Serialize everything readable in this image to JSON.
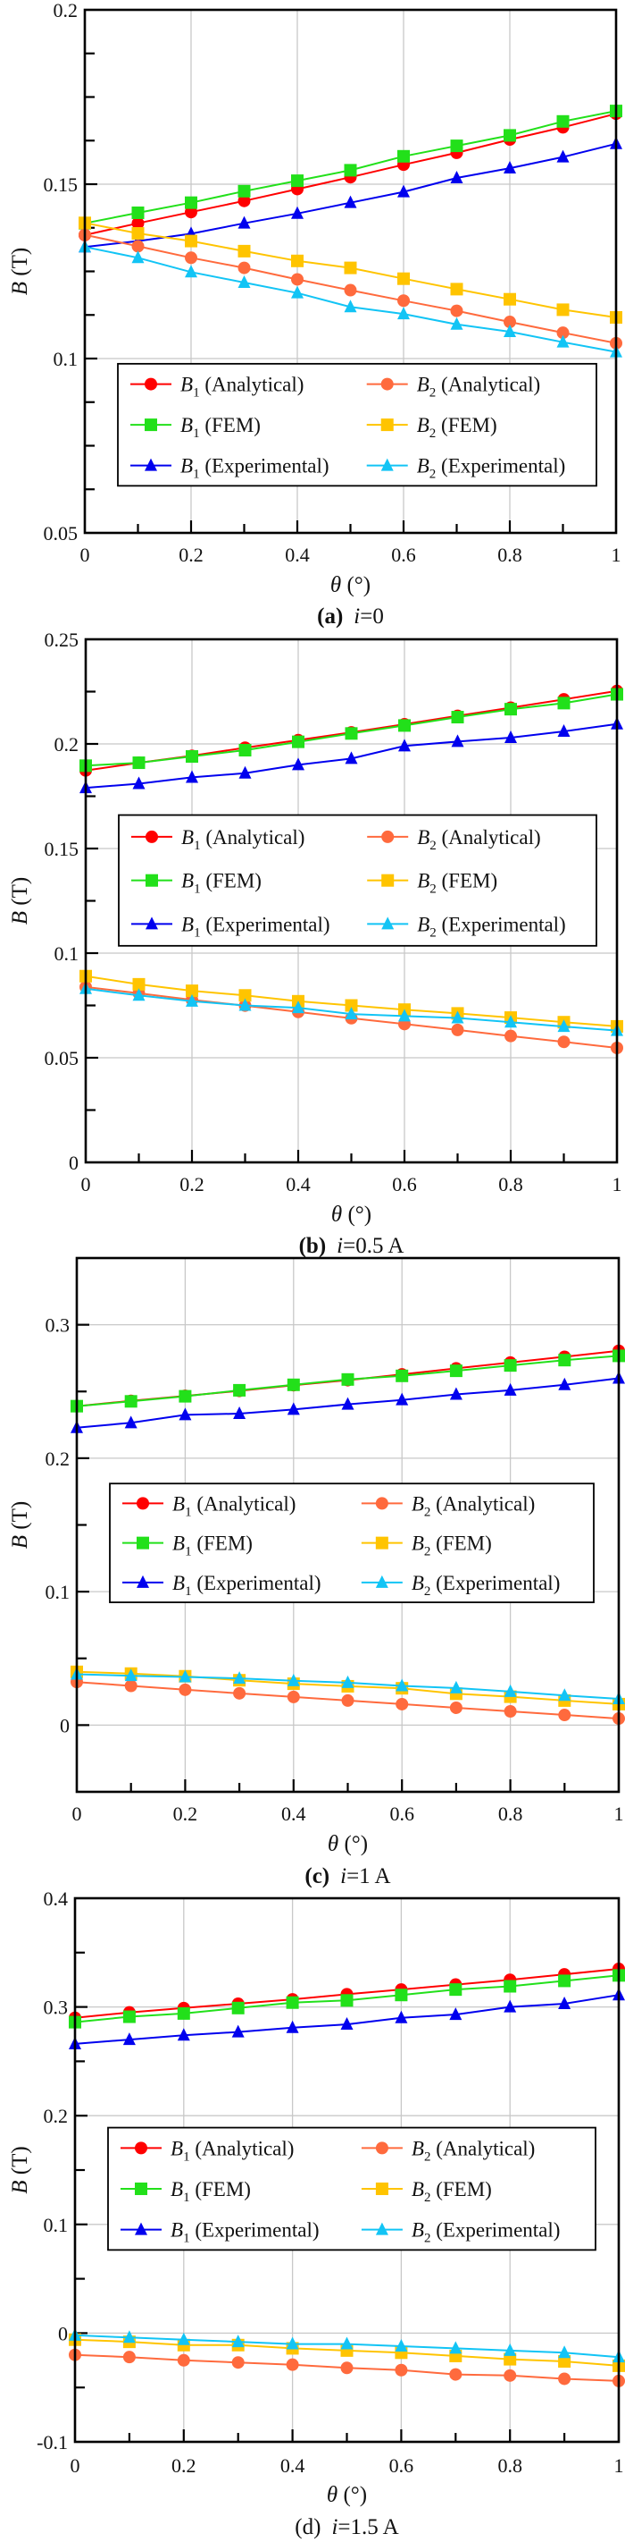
{
  "figure": {
    "legend_labels": {
      "b1_analytical": {
        "sym": "B",
        "sub": "1",
        "text": " (Analytical)"
      },
      "b2_analytical": {
        "sym": "B",
        "sub": "2",
        "text": " (Analytical)"
      },
      "b1_fem": {
        "sym": "B",
        "sub": "1",
        "text": " (FEM)"
      },
      "b2_fem": {
        "sym": "B",
        "sub": "2",
        "text": " (FEM)"
      },
      "b1_exp": {
        "sym": "B",
        "sub": "1",
        "text": " (Experimental)"
      },
      "b2_exp": {
        "sym": "B",
        "sub": "2",
        "text": " (Experimental)"
      }
    },
    "series_colors": {
      "b1_analytical": "#ff0000",
      "b2_analytical": "#ff6a3d",
      "b1_fem": "#22e01a",
      "b2_fem": "#ffc400",
      "b1_exp": "#0000ee",
      "b2_exp": "#12c4f5"
    },
    "series_markers": {
      "b1_analytical": "circle",
      "b2_analytical": "circle",
      "b1_fem": "square",
      "b2_fem": "square",
      "b1_exp": "triangle",
      "b2_exp": "triangle"
    }
  },
  "chart_data": [
    {
      "type": "line",
      "panel": "a",
      "caption": {
        "prefix": "(a)",
        "var": "i",
        "value": "=0",
        "bold": true
      },
      "xlabel": {
        "sym": "θ",
        "unit": " (°)"
      },
      "ylabel": {
        "sym": "B",
        "unit": " (T)"
      },
      "xlim": [
        0,
        1
      ],
      "ylim": [
        0.05,
        0.2
      ],
      "xticks": [
        "0",
        "0.2",
        "0.4",
        "0.6",
        "0.8",
        "1"
      ],
      "xtick_values": [
        0,
        0.2,
        0.4,
        0.6,
        0.8,
        1
      ],
      "yticks": [
        "0.05",
        "0.1",
        "0.15",
        "0.2"
      ],
      "ytick_values": [
        0.05,
        0.1,
        0.15,
        0.2
      ],
      "y_minor_step": 0.0125,
      "grid": true,
      "legend": "center-bottom",
      "x": [
        0,
        0.1,
        0.2,
        0.3,
        0.4,
        0.5,
        0.6,
        0.7,
        0.8,
        0.9,
        1
      ],
      "series": [
        {
          "key": "b1_analytical",
          "name": "B1 (Analytical)",
          "values": [
            0.1354,
            0.1388,
            0.142,
            0.1452,
            0.1486,
            0.152,
            0.1556,
            0.159,
            0.1628,
            0.1663,
            0.1702
          ]
        },
        {
          "key": "b1_fem",
          "name": "B1 (FEM)",
          "values": [
            0.1388,
            0.1418,
            0.1447,
            0.148,
            0.151,
            0.154,
            0.158,
            0.161,
            0.164,
            0.168,
            0.171
          ]
        },
        {
          "key": "b1_exp",
          "name": "B1 (Experimental)",
          "values": [
            0.132,
            0.1337,
            0.1358,
            0.1388,
            0.1416,
            0.1447,
            0.1478,
            0.1518,
            0.1546,
            0.1578,
            0.1616
          ]
        },
        {
          "key": "b2_analytical",
          "name": "B2 (Analytical)",
          "values": [
            0.1355,
            0.1322,
            0.1289,
            0.126,
            0.1227,
            0.1196,
            0.1166,
            0.1137,
            0.1105,
            0.1074,
            0.1044
          ]
        },
        {
          "key": "b2_fem",
          "name": "B2 (FEM)",
          "values": [
            0.1389,
            0.1359,
            0.1337,
            0.1308,
            0.128,
            0.126,
            0.1229,
            0.1199,
            0.117,
            0.114,
            0.1118
          ]
        },
        {
          "key": "b2_exp",
          "name": "B2 (Experimental)",
          "values": [
            0.132,
            0.1289,
            0.1248,
            0.1218,
            0.1188,
            0.1148,
            0.1128,
            0.1098,
            0.1077,
            0.1047,
            0.1019
          ]
        }
      ]
    },
    {
      "type": "line",
      "panel": "b",
      "caption": {
        "prefix": "(b)",
        "var": "i",
        "value": "=0.5 A",
        "bold": true
      },
      "xlabel": {
        "sym": "θ",
        "unit": " (°)"
      },
      "ylabel": {
        "sym": "B",
        "unit": " (T)"
      },
      "xlim": [
        0,
        1
      ],
      "ylim": [
        0,
        0.25
      ],
      "xticks": [
        "0",
        "0.2",
        "0.4",
        "0.6",
        "0.8",
        "1"
      ],
      "xtick_values": [
        0,
        0.2,
        0.4,
        0.6,
        0.8,
        1
      ],
      "yticks": [
        "0",
        "0.05",
        "0.1",
        "0.15",
        "0.2",
        "0.25"
      ],
      "ytick_values": [
        0,
        0.05,
        0.1,
        0.15,
        0.2,
        0.25
      ],
      "y_minor_step": 0.025,
      "grid": true,
      "legend": "center",
      "x": [
        0,
        0.1,
        0.2,
        0.3,
        0.4,
        0.5,
        0.6,
        0.7,
        0.8,
        0.9,
        1
      ],
      "series": [
        {
          "key": "b1_analytical",
          "name": "B1 (Analytical)",
          "values": [
            0.1873,
            0.191,
            0.1943,
            0.1982,
            0.2018,
            0.2055,
            0.2094,
            0.2134,
            0.2173,
            0.2213,
            0.2253
          ]
        },
        {
          "key": "b1_fem",
          "name": "B1 (FEM)",
          "values": [
            0.1896,
            0.191,
            0.194,
            0.197,
            0.201,
            0.205,
            0.2088,
            0.2128,
            0.2166,
            0.2195,
            0.2237
          ]
        },
        {
          "key": "b1_exp",
          "name": "B1 (Experimental)",
          "values": [
            0.179,
            0.181,
            0.184,
            0.186,
            0.19,
            0.193,
            0.199,
            0.2011,
            0.203,
            0.206,
            0.2095
          ]
        },
        {
          "key": "b2_analytical",
          "name": "B2 (Analytical)",
          "values": [
            0.0838,
            0.0808,
            0.0777,
            0.0749,
            0.0719,
            0.0689,
            0.0661,
            0.0633,
            0.0604,
            0.0576,
            0.0547
          ]
        },
        {
          "key": "b2_fem",
          "name": "B2 (FEM)",
          "values": [
            0.089,
            0.0851,
            0.082,
            0.0798,
            0.077,
            0.075,
            0.073,
            0.0712,
            0.0692,
            0.067,
            0.065
          ]
        },
        {
          "key": "b2_exp",
          "name": "B2 (Experimental)",
          "values": [
            0.083,
            0.0798,
            0.077,
            0.075,
            0.0739,
            0.0709,
            0.0699,
            0.069,
            0.067,
            0.0649,
            0.063
          ]
        }
      ]
    },
    {
      "type": "line",
      "panel": "c",
      "caption": {
        "prefix": "(c)",
        "var": "i",
        "value": "=1 A",
        "bold": true
      },
      "xlabel": {
        "sym": "θ",
        "unit": " (°)"
      },
      "ylabel": {
        "sym": "B",
        "unit": " (T)"
      },
      "xlim": [
        0,
        1
      ],
      "ylim": [
        -0.05,
        0.35
      ],
      "xticks": [
        "0",
        "0.2",
        "0.4",
        "0.6",
        "0.8",
        "1"
      ],
      "xtick_values": [
        0,
        0.2,
        0.4,
        0.6,
        0.8,
        1
      ],
      "yticks": [
        "0",
        "0.1",
        "0.2",
        "0.3"
      ],
      "ytick_values": [
        0,
        0.1,
        0.2,
        0.3
      ],
      "y_minor_step": 0.05,
      "grid": true,
      "legend": "center",
      "x": [
        0,
        0.1,
        0.2,
        0.3,
        0.4,
        0.5,
        0.6,
        0.7,
        0.8,
        0.9,
        1
      ],
      "series": [
        {
          "key": "b1_analytical",
          "name": "B1 (Analytical)",
          "values": [
            0.239,
            0.243,
            0.2467,
            0.2505,
            0.2547,
            0.2585,
            0.2628,
            0.2673,
            0.2717,
            0.276,
            0.2805
          ]
        },
        {
          "key": "b1_fem",
          "name": "B1 (FEM)",
          "values": [
            0.239,
            0.2426,
            0.2464,
            0.2509,
            0.255,
            0.259,
            0.2617,
            0.2655,
            0.2695,
            0.2735,
            0.2767
          ]
        },
        {
          "key": "b1_exp",
          "name": "B1 (Experimental)",
          "values": [
            0.2229,
            0.2265,
            0.2325,
            0.2334,
            0.2365,
            0.2404,
            0.2437,
            0.2478,
            0.2509,
            0.255,
            0.2599
          ]
        },
        {
          "key": "b2_analytical",
          "name": "B2 (Analytical)",
          "values": [
            0.0323,
            0.0294,
            0.0265,
            0.0238,
            0.0211,
            0.0184,
            0.0157,
            0.013,
            0.0103,
            0.0076,
            0.0049
          ]
        },
        {
          "key": "b2_fem",
          "name": "B2 (FEM)",
          "values": [
            0.0399,
            0.0386,
            0.0366,
            0.0336,
            0.031,
            0.0291,
            0.0276,
            0.0235,
            0.0213,
            0.0184,
            0.0157
          ]
        },
        {
          "key": "b2_exp",
          "name": "B2 (Experimental)",
          "values": [
            0.0381,
            0.037,
            0.0361,
            0.035,
            0.0332,
            0.0318,
            0.0294,
            0.0278,
            0.0251,
            0.0222,
            0.0197
          ]
        }
      ]
    },
    {
      "type": "line",
      "panel": "d",
      "caption": {
        "prefix": "(d)",
        "var": "i",
        "value": "=1.5 A",
        "bold": false
      },
      "xlabel": {
        "sym": "θ",
        "unit": " (°)"
      },
      "ylabel": {
        "sym": "B",
        "unit": " (T)"
      },
      "xlim": [
        0,
        1
      ],
      "ylim": [
        -0.1,
        0.4
      ],
      "xticks": [
        "0",
        "0.2",
        "0.4",
        "0.6",
        "0.8",
        "1"
      ],
      "xtick_values": [
        0,
        0.2,
        0.4,
        0.6,
        0.8,
        1
      ],
      "yticks": [
        "-0.1",
        "0",
        "0.1",
        "0.2",
        "0.3",
        "0.4"
      ],
      "ytick_values": [
        -0.1,
        0,
        0.1,
        0.2,
        0.3,
        0.4
      ],
      "y_minor_step": 0.05,
      "grid": true,
      "legend": "center",
      "x": [
        0,
        0.1,
        0.2,
        0.3,
        0.4,
        0.5,
        0.6,
        0.7,
        0.8,
        0.9,
        1
      ],
      "series": [
        {
          "key": "b1_analytical",
          "name": "B1 (Analytical)",
          "values": [
            0.29,
            0.295,
            0.299,
            0.303,
            0.307,
            0.3117,
            0.316,
            0.3206,
            0.325,
            0.33,
            0.335
          ]
        },
        {
          "key": "b1_fem",
          "name": "B1 (FEM)",
          "values": [
            0.286,
            0.291,
            0.294,
            0.299,
            0.304,
            0.306,
            0.311,
            0.316,
            0.319,
            0.324,
            0.329
          ]
        },
        {
          "key": "b1_exp",
          "name": "B1 (Experimental)",
          "values": [
            0.266,
            0.27,
            0.274,
            0.277,
            0.281,
            0.284,
            0.29,
            0.293,
            0.3,
            0.303,
            0.311
          ]
        },
        {
          "key": "b2_analytical",
          "name": "B2 (Analytical)",
          "values": [
            -0.02,
            -0.022,
            -0.025,
            -0.027,
            -0.029,
            -0.032,
            -0.034,
            -0.038,
            -0.039,
            -0.042,
            -0.044
          ]
        },
        {
          "key": "b2_fem",
          "name": "B2 (FEM)",
          "values": [
            -0.006,
            -0.008,
            -0.011,
            -0.011,
            -0.014,
            -0.016,
            -0.018,
            -0.021,
            -0.024,
            -0.026,
            -0.03
          ]
        },
        {
          "key": "b2_exp",
          "name": "B2 (Experimental)",
          "values": [
            -0.002,
            -0.004,
            -0.006,
            -0.008,
            -0.01,
            -0.01,
            -0.012,
            -0.014,
            -0.016,
            -0.018,
            -0.022
          ]
        }
      ]
    }
  ]
}
